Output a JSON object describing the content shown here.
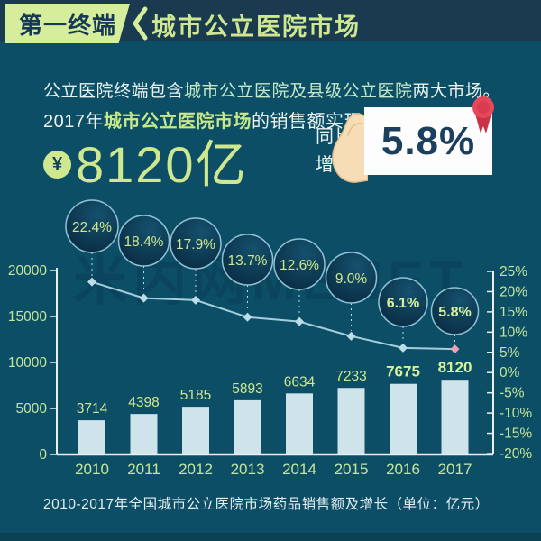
{
  "header": {
    "badge": "第一终端",
    "title": "城市公立医院市场"
  },
  "intro": {
    "line1": {
      "pre": "公立医院终端包含",
      "highlight": "城市公立医院及县级公立医院",
      "post": "两大市场。"
    },
    "line2": {
      "pre": "2017年",
      "highlight": "城市公立医院市场",
      "post": "的销售额实现"
    }
  },
  "headline": {
    "currency_symbol": "¥",
    "amount": "8120亿",
    "growth_label": [
      "同比",
      "增长"
    ],
    "growth_value": "5.8%"
  },
  "chart_data": {
    "type": "bar",
    "combo": "bar+line",
    "title": "2010-2017年全国城市公立医院市场药品销售额及增长（单位：亿元）",
    "categories": [
      "2010",
      "2011",
      "2012",
      "2013",
      "2014",
      "2015",
      "2016",
      "2017"
    ],
    "series": [
      {
        "name": "药品销售额",
        "type": "bar",
        "unit": "亿元",
        "values": [
          3714,
          4398,
          5185,
          5893,
          6634,
          7233,
          7675,
          8120
        ]
      },
      {
        "name": "增长",
        "type": "line",
        "unit": "%",
        "values": [
          22.4,
          18.4,
          17.9,
          13.7,
          12.6,
          9.0,
          6.1,
          5.8
        ]
      }
    ],
    "bubble_labels": [
      "22.4%",
      "18.4%",
      "17.9%",
      "13.7%",
      "12.6%",
      "9.0%",
      "6.1%",
      "5.8%"
    ],
    "left_axis": {
      "ticks": [
        0,
        5000,
        10000,
        15000,
        20000
      ],
      "range": [
        0,
        20000
      ]
    },
    "right_axis": {
      "ticks": [
        "25%",
        "20%",
        "15%",
        "10%",
        "5%",
        "0%",
        "-5%",
        "-10%",
        "-15%",
        "-20%"
      ],
      "range_percent": [
        -20,
        25
      ]
    },
    "grid": false,
    "legend_position": "none"
  },
  "caption": "2010-2017年全国城市公立医院市场药品销售额及增长（单位：亿元）",
  "watermark": "米内网MENET",
  "colors": {
    "background": "#0c4e66",
    "header_band": "#1a3a50",
    "lime": "#cfe88f",
    "lime_bold": "#d9f29a",
    "ribbon_bg": "#d6ee9b",
    "navy_text": "#173a54",
    "white_text": "#eef4f3",
    "highlight_green": "#c4e8c6",
    "bar_fill": "#cfe3ea",
    "line_color": "#a5cedd",
    "axis_color": "#e8f0f2",
    "tick_label": "#c5e59a",
    "pink_marker": "#ef9fb3",
    "red_badge": "#e8475a",
    "bubble_border": "#8fc3d6"
  }
}
